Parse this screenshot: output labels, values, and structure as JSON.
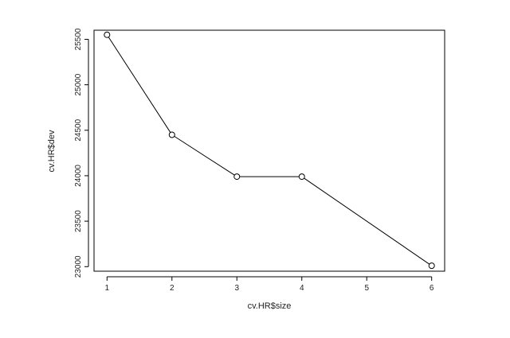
{
  "chart_data": {
    "type": "line",
    "title": "",
    "xlabel": "cv.HR$size",
    "ylabel": "cv.HR$dev",
    "x": [
      1,
      2,
      3,
      4,
      5,
      6
    ],
    "xticks": [
      1,
      2,
      3,
      4,
      5,
      6
    ],
    "xtick_labels": [
      "1",
      "2",
      "3",
      "4",
      "5",
      "6"
    ],
    "yticks": [
      23000,
      23500,
      24000,
      24500,
      25000,
      25500
    ],
    "ytick_labels": [
      "23000",
      "23500",
      "24000",
      "24500",
      "25000",
      "25500"
    ],
    "xlim": [
      0.8,
      6.2
    ],
    "ylim": [
      22950,
      25600
    ],
    "grid": false,
    "legend": "none",
    "series": [
      {
        "points": [
          {
            "x": 1,
            "y": 25550
          },
          {
            "x": 2,
            "y": 24450
          },
          {
            "x": 3,
            "y": 23990
          },
          {
            "x": 4,
            "y": 23990
          },
          {
            "x": 6,
            "y": 23010
          }
        ],
        "marker": "open-circle",
        "color": "#000000"
      }
    ]
  }
}
